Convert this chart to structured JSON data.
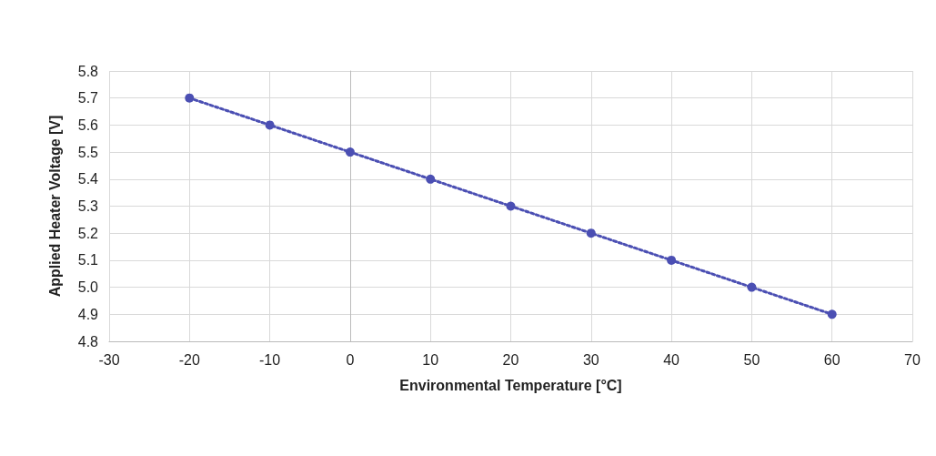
{
  "chart_data": {
    "type": "line",
    "xlabel": "Environmental Temperature [°C]",
    "ylabel": "Applied Heater Voltage [V]",
    "x": [
      -20,
      -10,
      0,
      10,
      20,
      30,
      40,
      50,
      60
    ],
    "series": [
      {
        "color": "#4b4fb3",
        "values": [
          5.7,
          5.6,
          5.5,
          5.4,
          5.3,
          5.2,
          5.1,
          5.0,
          4.9
        ]
      }
    ],
    "xlim": [
      -30,
      70
    ],
    "xticks": [
      -30,
      -20,
      -10,
      0,
      10,
      20,
      30,
      40,
      50,
      60,
      70
    ],
    "ylim": [
      4.8,
      5.8
    ],
    "yticks": [
      4.8,
      4.9,
      {
        "value": 5,
        "label": "5.0"
      },
      5.1,
      5.2,
      5.3,
      5.4,
      5.5,
      5.6,
      5.7,
      5.8
    ],
    "grid": true,
    "marker": "circle",
    "line_style": "dotted"
  }
}
